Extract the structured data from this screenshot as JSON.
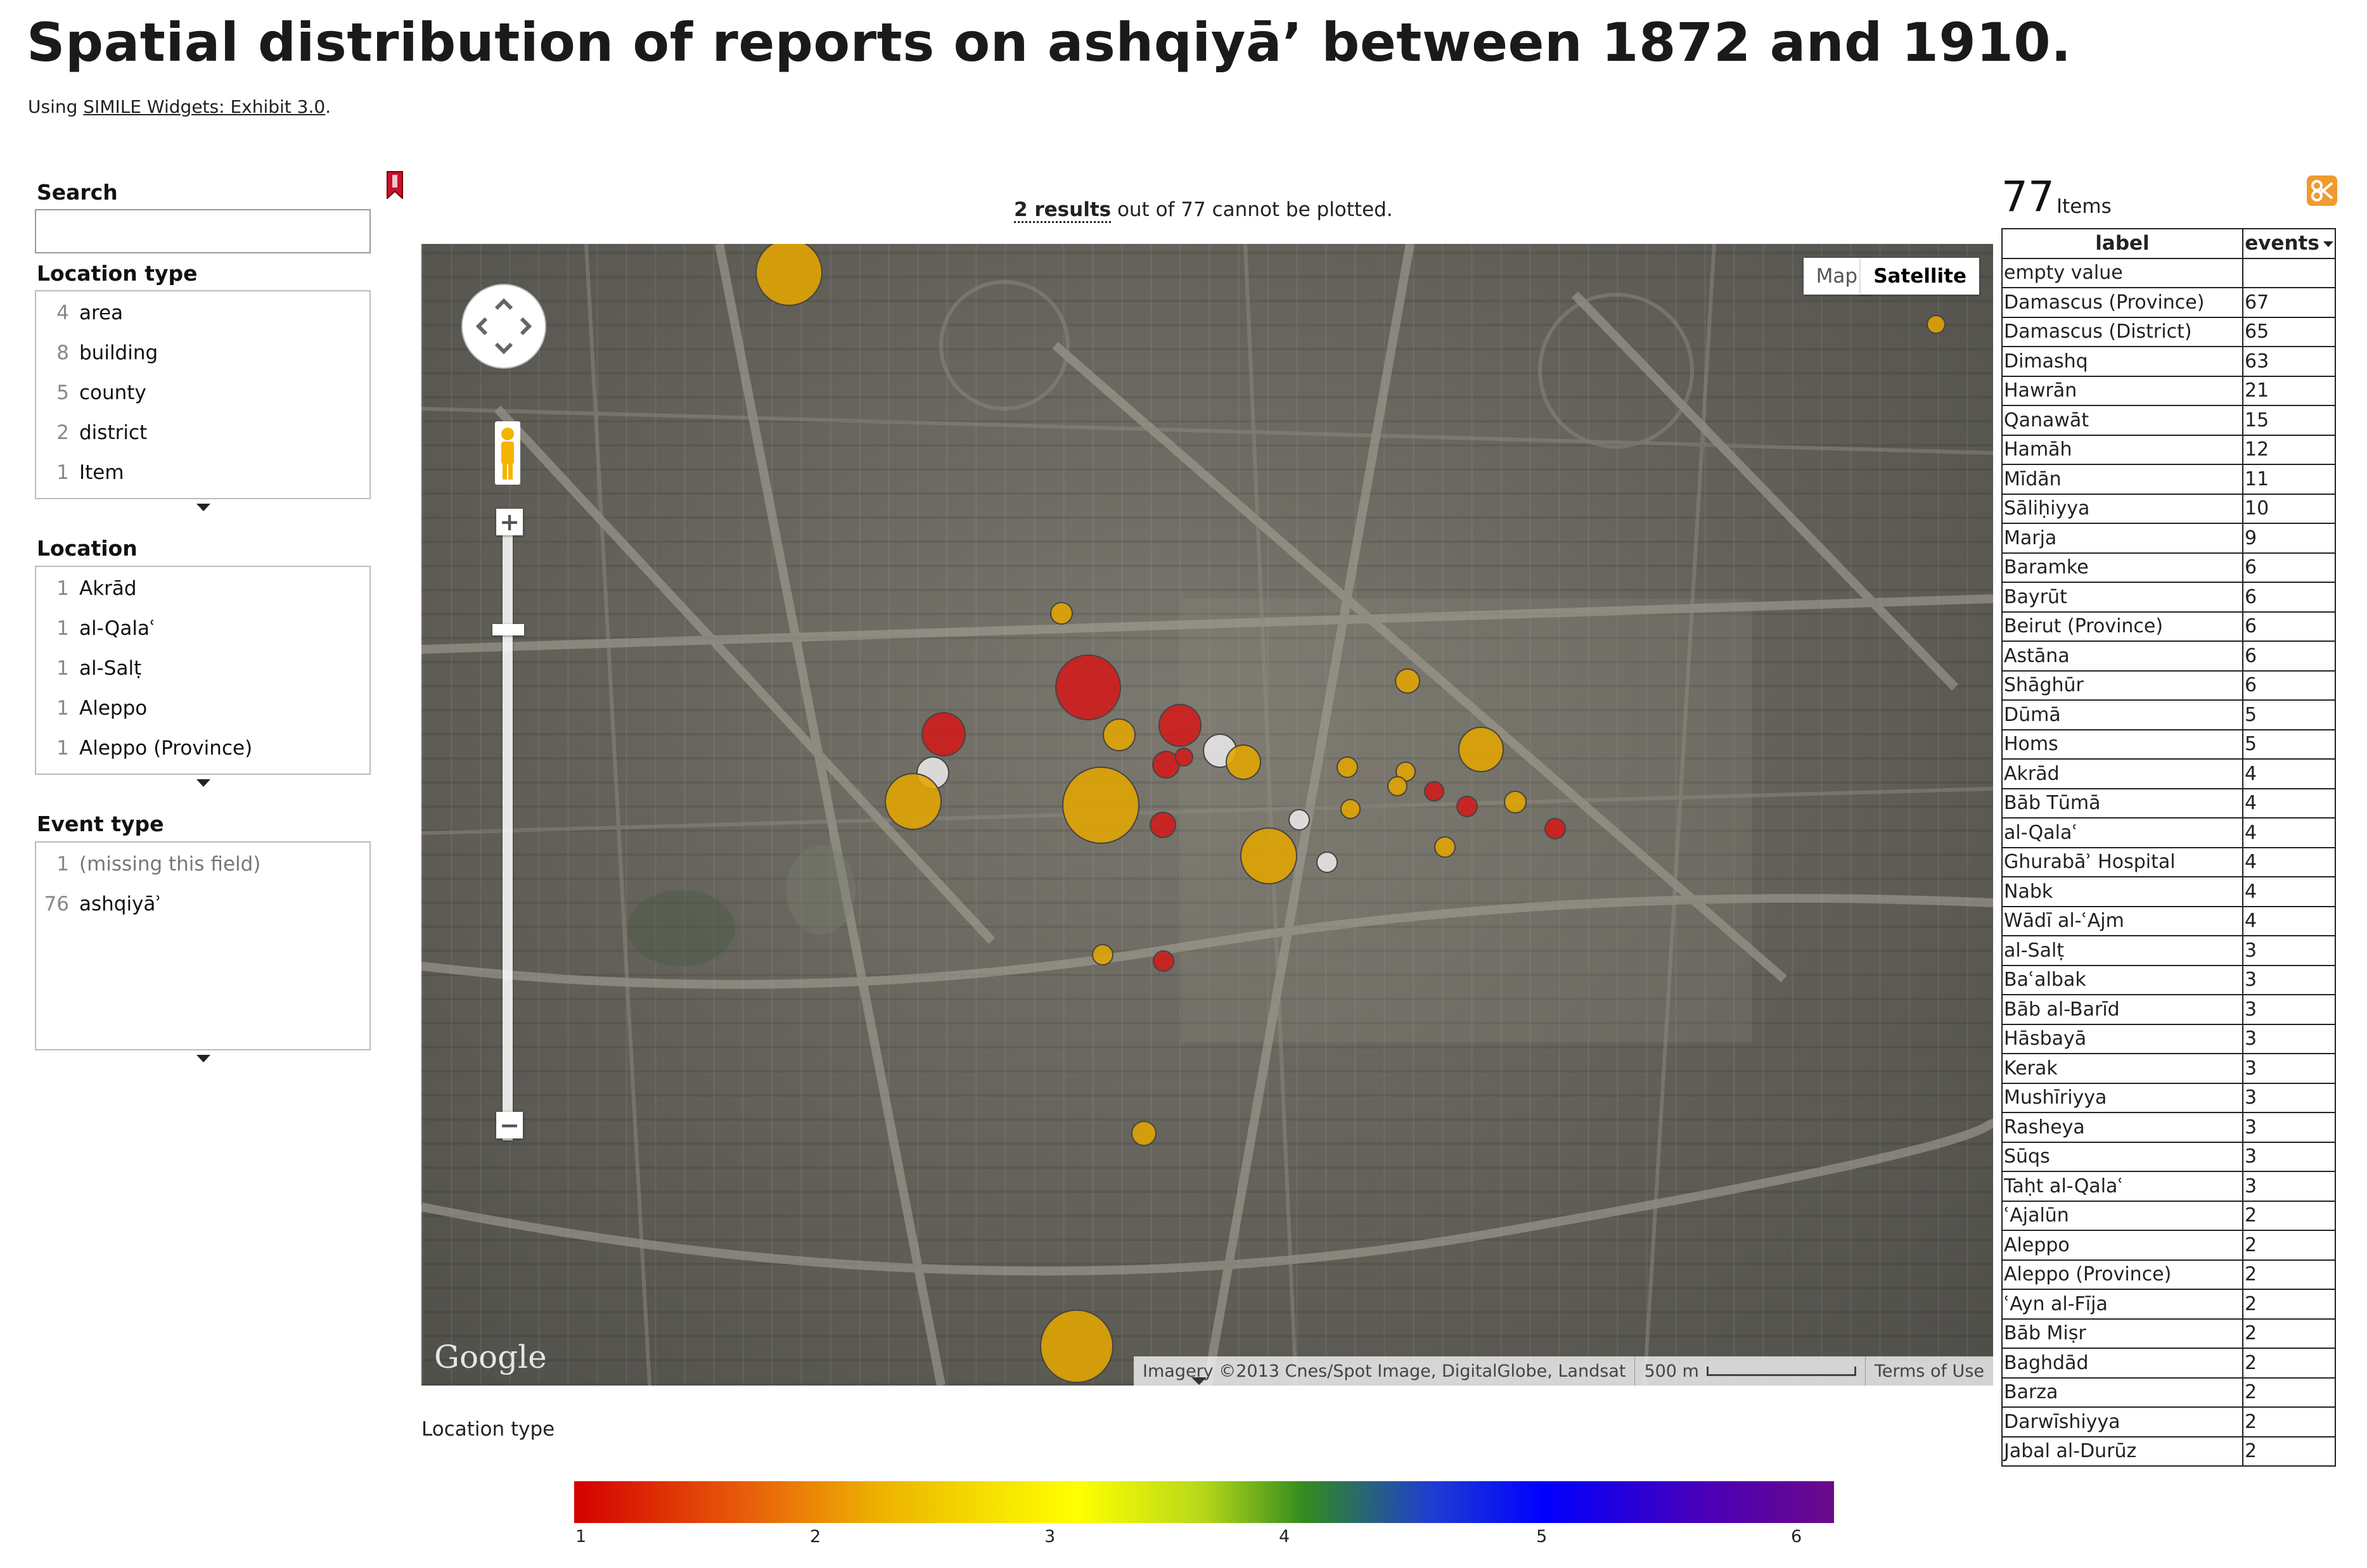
{
  "title": "Spatial distribution of reports on ashqiyā’ between 1872 and 1910.",
  "credit": {
    "prefix": "Using ",
    "link": "SIMILE Widgets: Exhibit 3.0",
    "suffix": "."
  },
  "facets": {
    "search": {
      "label": "Search",
      "value": ""
    },
    "location_type": {
      "label": "Location type",
      "items": [
        {
          "count": "4",
          "value": "area"
        },
        {
          "count": "8",
          "value": "building"
        },
        {
          "count": "5",
          "value": "county"
        },
        {
          "count": "2",
          "value": "district"
        },
        {
          "count": "1",
          "value": "Item"
        }
      ]
    },
    "location": {
      "label": "Location",
      "items": [
        {
          "count": "1",
          "value": "Akrād"
        },
        {
          "count": "1",
          "value": "al-Qalaʿ"
        },
        {
          "count": "1",
          "value": "al-Salṭ"
        },
        {
          "count": "1",
          "value": "Aleppo"
        },
        {
          "count": "1",
          "value": "Aleppo (Province)"
        }
      ]
    },
    "event_type": {
      "label": "Event type",
      "items": [
        {
          "count": "1",
          "value": "(missing this field)"
        },
        {
          "count": "76",
          "value": "ashqiyāʾ"
        }
      ]
    }
  },
  "map": {
    "status": {
      "results": "2 results",
      "rest": " out of 77 cannot be plotted."
    },
    "map_button": "Map",
    "satellite_button": "Satellite",
    "zoom_in": "+",
    "zoom_out": "−",
    "logo": "Google",
    "imagery": "Imagery ©2013 Cnes/Spot Image, DigitalGlobe, Landsat",
    "scale": "500 m",
    "terms": "Terms of Use",
    "colors": {
      "c1": "#d11a1a",
      "c2": "#e3a500",
      "c3": "#e8e8e8"
    }
  },
  "legend": {
    "title": "Location type",
    "ticks": [
      "1",
      "2",
      "3",
      "4",
      "5",
      "6"
    ]
  },
  "table": {
    "count": "77",
    "count_label": "Items",
    "columns": {
      "label": "label",
      "events": "events"
    },
    "rows": [
      {
        "label": "empty value",
        "events": ""
      },
      {
        "label": "Damascus (Province)",
        "events": "67"
      },
      {
        "label": "Damascus (District)",
        "events": "65"
      },
      {
        "label": "Dimashq",
        "events": "63"
      },
      {
        "label": "Hawrān",
        "events": "21"
      },
      {
        "label": "Qanawāt",
        "events": "15"
      },
      {
        "label": "Hamāh",
        "events": "12"
      },
      {
        "label": "Mīdān",
        "events": "11"
      },
      {
        "label": "Sāliḥiyya",
        "events": "10"
      },
      {
        "label": "Marja",
        "events": "9"
      },
      {
        "label": "Baramke",
        "events": "6"
      },
      {
        "label": "Bayrūt",
        "events": "6"
      },
      {
        "label": "Beirut (Province)",
        "events": "6"
      },
      {
        "label": "Astāna",
        "events": "6"
      },
      {
        "label": "Shāghūr",
        "events": "6"
      },
      {
        "label": "Dūmā",
        "events": "5"
      },
      {
        "label": "Homs",
        "events": "5"
      },
      {
        "label": "Akrād",
        "events": "4"
      },
      {
        "label": "Bāb Tūmā",
        "events": "4"
      },
      {
        "label": "al-Qalaʿ",
        "events": "4"
      },
      {
        "label": "Ghurabāʾ Hospital",
        "events": "4"
      },
      {
        "label": "Nabk",
        "events": "4"
      },
      {
        "label": "Wādī al-ʿAjm",
        "events": "4"
      },
      {
        "label": "al-Salṭ",
        "events": "3"
      },
      {
        "label": "Baʿalbak",
        "events": "3"
      },
      {
        "label": "Bāb al-Barīd",
        "events": "3"
      },
      {
        "label": "Hāsbayā",
        "events": "3"
      },
      {
        "label": "Kerak",
        "events": "3"
      },
      {
        "label": "Mushīriyya",
        "events": "3"
      },
      {
        "label": "Rasheya",
        "events": "3"
      },
      {
        "label": "Sūqs",
        "events": "3"
      },
      {
        "label": "Taḥt al-Qalaʿ",
        "events": "3"
      },
      {
        "label": "ʿAjalūn",
        "events": "2"
      },
      {
        "label": "Aleppo",
        "events": "2"
      },
      {
        "label": "Aleppo (Province)",
        "events": "2"
      },
      {
        "label": "ʿAyn al-Fīja",
        "events": "2"
      },
      {
        "label": "Bāb Miṣr",
        "events": "2"
      },
      {
        "label": "Baghdād",
        "events": "2"
      },
      {
        "label": "Barza",
        "events": "2"
      },
      {
        "label": "Darwīshiyya",
        "events": "2"
      },
      {
        "label": "Jabal al-Durūz",
        "events": "2"
      }
    ]
  }
}
